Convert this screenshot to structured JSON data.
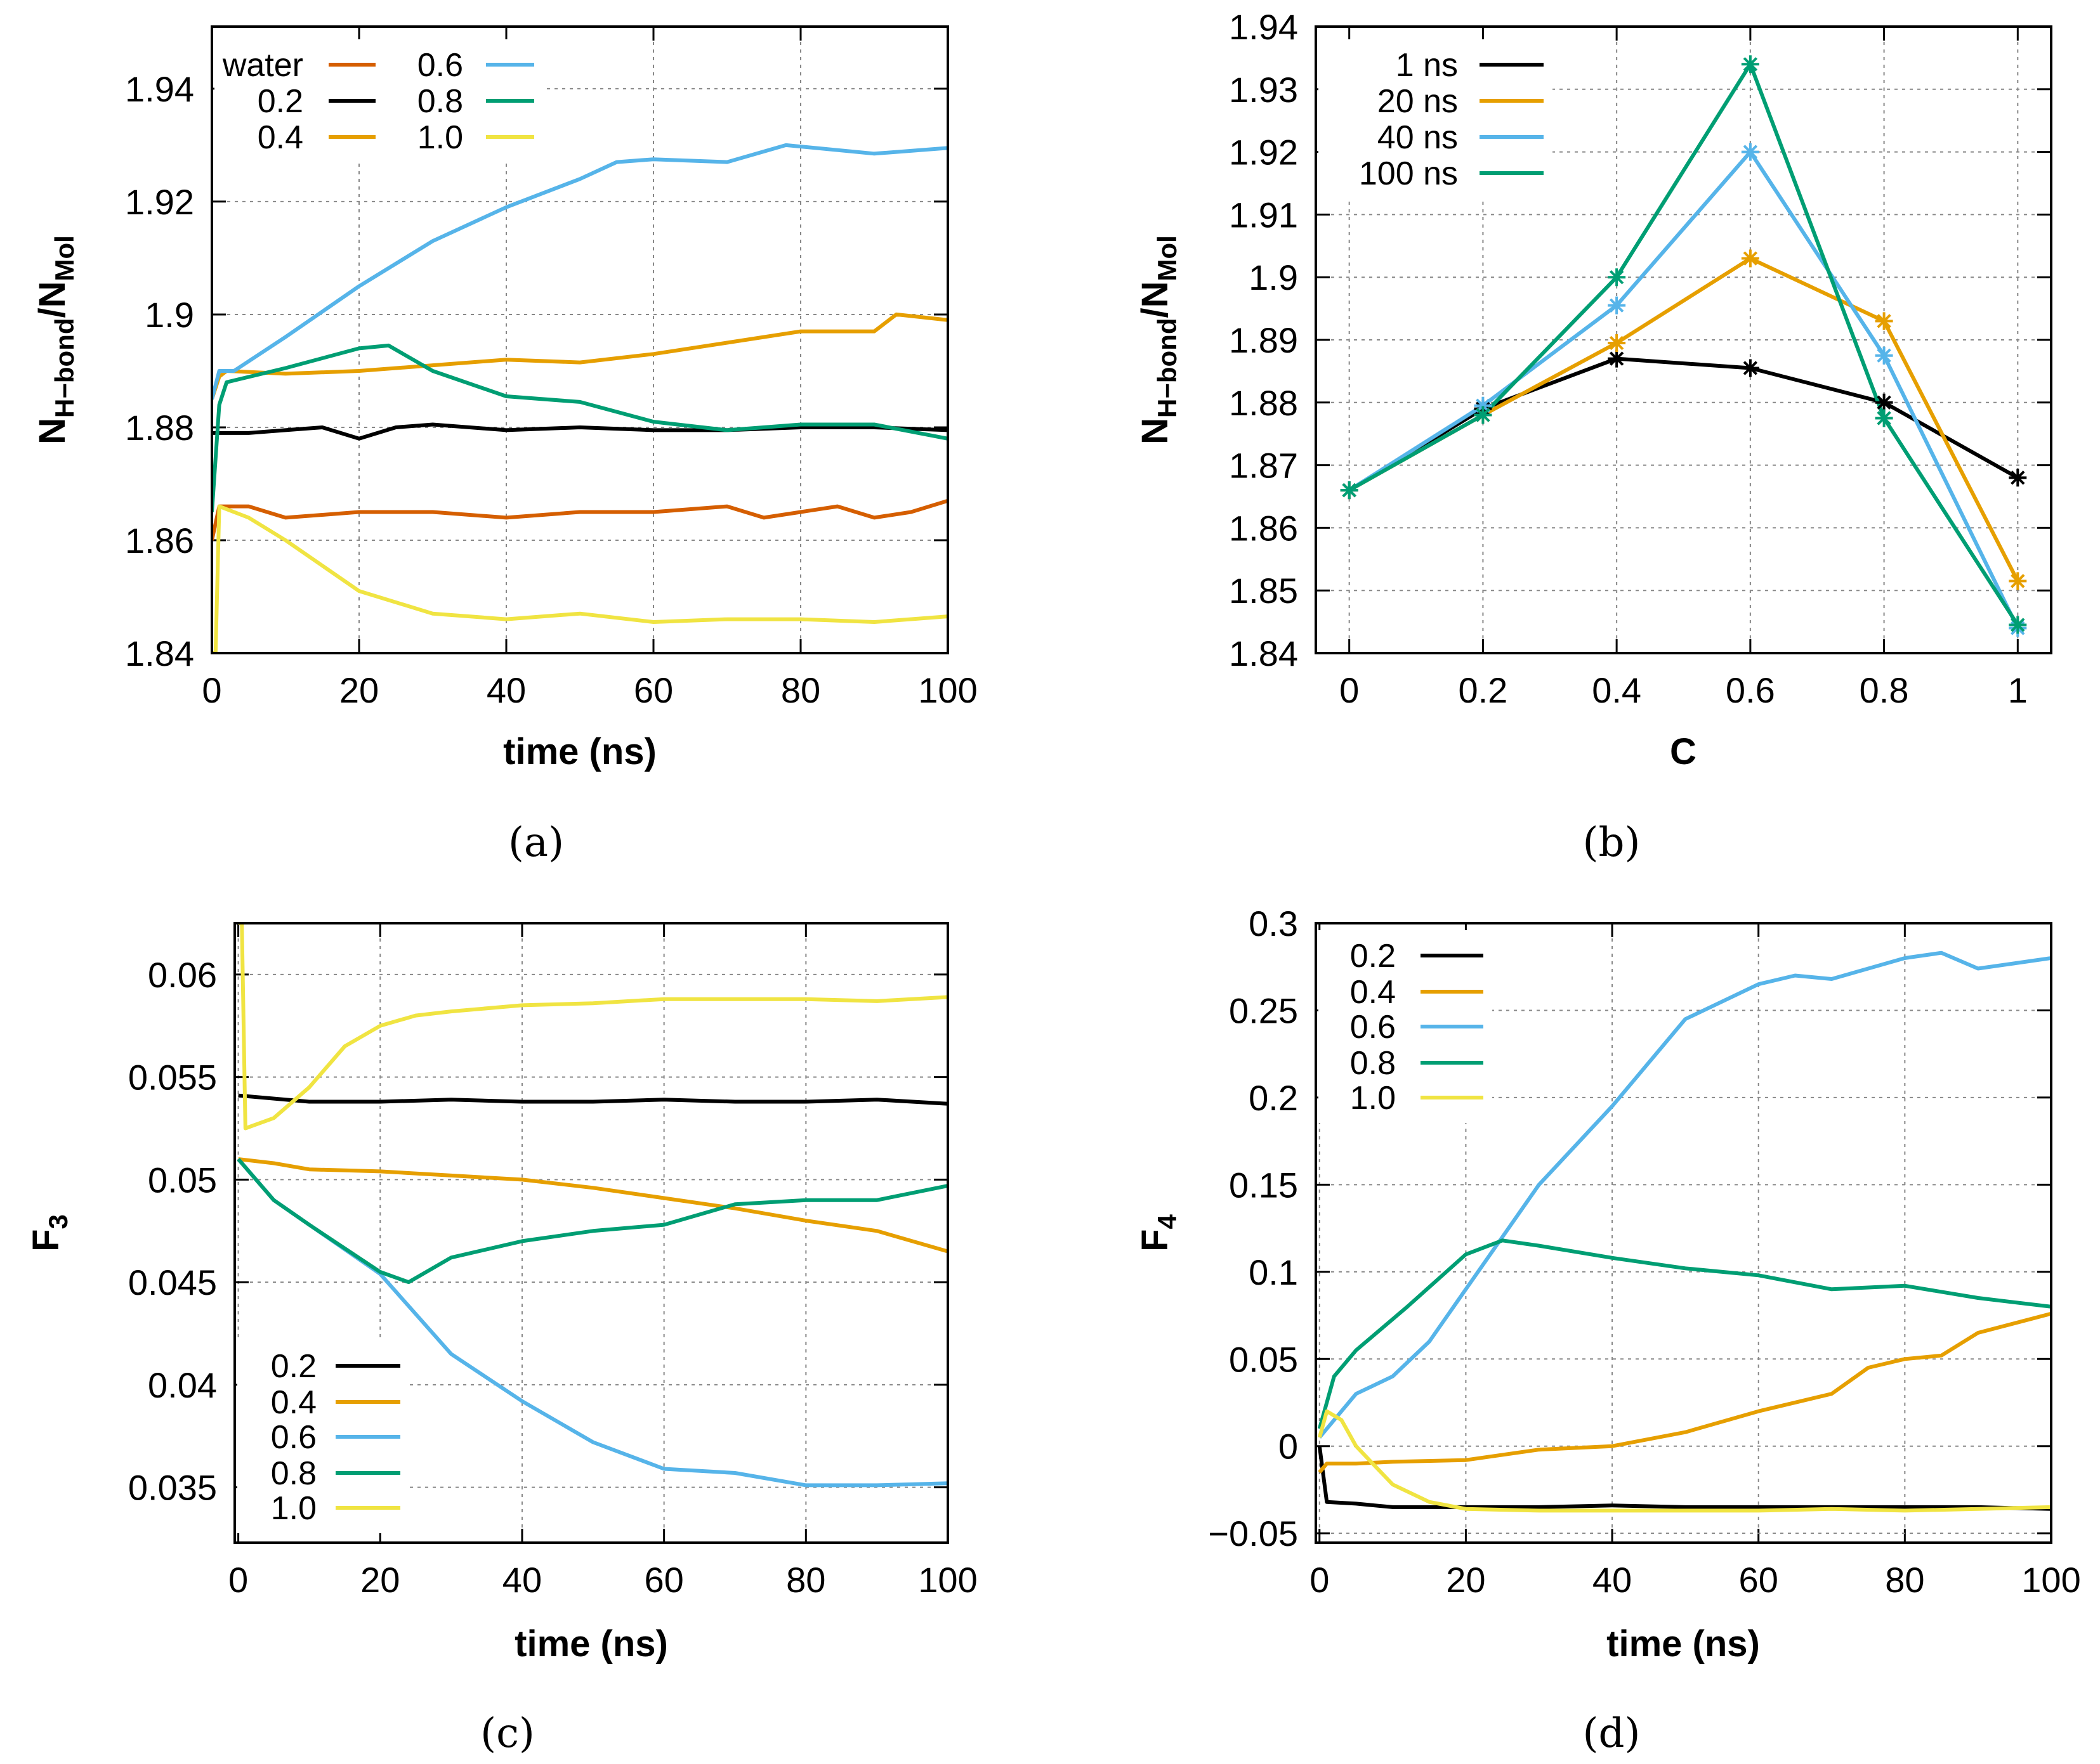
{
  "chart_data": [
    {
      "panel_label": "(a)",
      "type": "line",
      "xlabel": "time (ns)",
      "ylabel": {
        "n1": "N",
        "s1": "H−bond",
        "n2": "/N",
        "s2": "Mol"
      },
      "xlim": [
        0,
        100
      ],
      "ylim": [
        1.84,
        1.951
      ],
      "xticks": [
        0,
        20,
        40,
        60,
        80,
        100
      ],
      "xtick_labels": [
        "0",
        "20",
        "40",
        "60",
        "80",
        "100"
      ],
      "yticks": [
        1.84,
        1.86,
        1.88,
        1.9,
        1.92,
        1.94
      ],
      "ytick_labels": [
        "1.84",
        "1.86",
        "1.88",
        "1.9",
        "1.92",
        "1.94"
      ],
      "grid": true,
      "legend": {
        "placement": "top-left",
        "columns": 2
      },
      "series": [
        {
          "name": "water",
          "color": "#d55e00",
          "x": [
            0,
            1,
            5,
            10,
            20,
            30,
            40,
            50,
            60,
            70,
            75,
            80,
            85,
            90,
            95,
            100
          ],
          "y": [
            1.86,
            1.866,
            1.866,
            1.864,
            1.865,
            1.865,
            1.864,
            1.865,
            1.865,
            1.866,
            1.864,
            1.865,
            1.866,
            1.864,
            1.865,
            1.867
          ]
        },
        {
          "name": "0.2",
          "color": "#000000",
          "x": [
            0,
            1,
            5,
            10,
            15,
            20,
            25,
            30,
            40,
            50,
            60,
            70,
            80,
            90,
            100
          ],
          "y": [
            1.879,
            1.879,
            1.879,
            1.8795,
            1.88,
            1.878,
            1.88,
            1.8805,
            1.8795,
            1.88,
            1.8795,
            1.8795,
            1.88,
            1.88,
            1.8795
          ]
        },
        {
          "name": "0.4",
          "color": "#e69f00",
          "x": [
            0,
            1,
            2,
            10,
            20,
            30,
            40,
            50,
            60,
            70,
            80,
            85,
            90,
            93,
            100
          ],
          "y": [
            1.885,
            1.889,
            1.89,
            1.8895,
            1.89,
            1.891,
            1.892,
            1.8915,
            1.893,
            1.895,
            1.897,
            1.897,
            1.897,
            1.9,
            1.899
          ]
        },
        {
          "name": "0.6",
          "color": "#56b4e9",
          "x": [
            0,
            1,
            3,
            10,
            20,
            30,
            40,
            50,
            55,
            60,
            70,
            78,
            90,
            100
          ],
          "y": [
            1.885,
            1.89,
            1.89,
            1.896,
            1.905,
            1.913,
            1.919,
            1.924,
            1.927,
            1.9275,
            1.927,
            1.93,
            1.9285,
            1.9295
          ]
        },
        {
          "name": "0.8",
          "color": "#009e73",
          "x": [
            0,
            1,
            2,
            10,
            20,
            24,
            30,
            40,
            50,
            60,
            70,
            80,
            90,
            100
          ],
          "y": [
            1.865,
            1.884,
            1.888,
            1.8905,
            1.894,
            1.8945,
            1.89,
            1.8855,
            1.8845,
            1.881,
            1.8795,
            1.8805,
            1.8805,
            1.878
          ]
        },
        {
          "name": "1.0",
          "color": "#f0e442",
          "x": [
            0,
            0.5,
            1,
            5,
            10,
            20,
            30,
            40,
            50,
            60,
            70,
            80,
            90,
            100
          ],
          "y": [
            1.84,
            1.84,
            1.866,
            1.864,
            1.86,
            1.851,
            1.847,
            1.846,
            1.847,
            1.8455,
            1.846,
            1.846,
            1.8455,
            1.8465
          ]
        }
      ]
    },
    {
      "panel_label": "(b)",
      "type": "line",
      "xlabel": "C",
      "ylabel": {
        "n1": "N",
        "s1": "H−bond",
        "n2": "/N",
        "s2": "Mol"
      },
      "xlim": [
        -0.05,
        1.05
      ],
      "ylim": [
        1.84,
        1.94
      ],
      "xticks": [
        0,
        0.2,
        0.4,
        0.6,
        0.8,
        1
      ],
      "xtick_labels": [
        "0",
        "0.2",
        "0.4",
        "0.6",
        "0.8",
        "1"
      ],
      "yticks": [
        1.84,
        1.85,
        1.86,
        1.87,
        1.88,
        1.89,
        1.9,
        1.91,
        1.92,
        1.93,
        1.94
      ],
      "ytick_labels": [
        "1.84",
        "1.85",
        "1.86",
        "1.87",
        "1.88",
        "1.89",
        "1.9",
        "1.91",
        "1.92",
        "1.93",
        "1.94"
      ],
      "grid": true,
      "markers": "asterisk",
      "legend": {
        "placement": "top-left",
        "columns": 1
      },
      "series": [
        {
          "name": "1 ns",
          "color": "#000000",
          "x": [
            0,
            0.2,
            0.4,
            0.6,
            0.8,
            1
          ],
          "y": [
            1.866,
            1.879,
            1.887,
            1.8855,
            1.88,
            1.868
          ]
        },
        {
          "name": "20 ns",
          "color": "#e69f00",
          "x": [
            0,
            0.2,
            0.4,
            0.6,
            0.8,
            1
          ],
          "y": [
            1.866,
            1.878,
            1.8895,
            1.903,
            1.893,
            1.8515
          ]
        },
        {
          "name": "40 ns",
          "color": "#56b4e9",
          "x": [
            0,
            0.2,
            0.4,
            0.6,
            0.8,
            1
          ],
          "y": [
            1.866,
            1.8795,
            1.8955,
            1.92,
            1.8875,
            1.844
          ]
        },
        {
          "name": "100 ns",
          "color": "#009e73",
          "x": [
            0,
            0.2,
            0.4,
            0.6,
            0.8,
            1
          ],
          "y": [
            1.866,
            1.878,
            1.9,
            1.934,
            1.8775,
            1.8445
          ]
        }
      ]
    },
    {
      "panel_label": "(c)",
      "type": "line",
      "xlabel": "time (ns)",
      "ylabel": {
        "n1": "F",
        "s1": "3",
        "n2": "",
        "s2": ""
      },
      "xlim": [
        -0.5,
        100
      ],
      "ylim": [
        0.0323,
        0.0625
      ],
      "xticks": [
        0,
        20,
        40,
        60,
        80,
        100
      ],
      "xtick_labels": [
        "0",
        "20",
        "40",
        "60",
        "80",
        "100"
      ],
      "yticks": [
        0.035,
        0.04,
        0.045,
        0.05,
        0.055,
        0.06
      ],
      "ytick_labels": [
        "0.035",
        "0.04",
        "0.045",
        "0.05",
        "0.055",
        "0.06"
      ],
      "grid": true,
      "legend": {
        "placement": "bottom-left",
        "columns": 1
      },
      "series": [
        {
          "name": "0.2",
          "color": "#000000",
          "x": [
            0,
            10,
            20,
            30,
            40,
            50,
            60,
            70,
            80,
            90,
            100
          ],
          "y": [
            0.0541,
            0.0538,
            0.0538,
            0.0539,
            0.0538,
            0.0538,
            0.0539,
            0.0538,
            0.0538,
            0.0539,
            0.0537
          ]
        },
        {
          "name": "0.4",
          "color": "#e69f00",
          "x": [
            0,
            5,
            10,
            20,
            30,
            40,
            50,
            60,
            70,
            80,
            90,
            100
          ],
          "y": [
            0.051,
            0.0508,
            0.0505,
            0.0504,
            0.0502,
            0.05,
            0.0496,
            0.0491,
            0.0486,
            0.048,
            0.0475,
            0.0465
          ]
        },
        {
          "name": "0.6",
          "color": "#56b4e9",
          "x": [
            0,
            5,
            10,
            20,
            30,
            40,
            50,
            60,
            70,
            80,
            90,
            100
          ],
          "y": [
            0.051,
            0.049,
            0.0478,
            0.0454,
            0.0415,
            0.0392,
            0.0372,
            0.0359,
            0.0357,
            0.0351,
            0.0351,
            0.0352
          ]
        },
        {
          "name": "0.8",
          "color": "#009e73",
          "x": [
            0,
            5,
            10,
            20,
            24,
            30,
            40,
            50,
            60,
            70,
            80,
            90,
            100
          ],
          "y": [
            0.051,
            0.049,
            0.0478,
            0.0455,
            0.045,
            0.0462,
            0.047,
            0.0475,
            0.0478,
            0.0488,
            0.049,
            0.049,
            0.0497
          ]
        },
        {
          "name": "1.0",
          "color": "#f0e442",
          "x": [
            0,
            0.5,
            1,
            5,
            10,
            15,
            20,
            25,
            30,
            40,
            50,
            60,
            70,
            80,
            90,
            100
          ],
          "y": [
            0.0625,
            0.0625,
            0.0525,
            0.053,
            0.0545,
            0.0565,
            0.0575,
            0.058,
            0.0582,
            0.0585,
            0.0586,
            0.0588,
            0.0588,
            0.0588,
            0.0587,
            0.0589
          ]
        }
      ]
    },
    {
      "panel_label": "(d)",
      "type": "line",
      "xlabel": "time (ns)",
      "ylabel": {
        "n1": "F",
        "s1": "4",
        "n2": "",
        "s2": ""
      },
      "xlim": [
        -0.5,
        100
      ],
      "ylim": [
        -0.0554,
        0.3
      ],
      "xticks": [
        0,
        20,
        40,
        60,
        80,
        100
      ],
      "xtick_labels": [
        "0",
        "20",
        "40",
        "60",
        "80",
        "100"
      ],
      "yticks": [
        -0.05,
        0,
        0.05,
        0.1,
        0.15,
        0.2,
        0.25,
        0.3
      ],
      "ytick_labels": [
        "−0.05",
        "0",
        "0.05",
        "0.1",
        "0.15",
        "0.2",
        "0.25",
        "0.3"
      ],
      "grid": true,
      "legend": {
        "placement": "top-left",
        "columns": 1
      },
      "series": [
        {
          "name": "0.2",
          "color": "#000000",
          "x": [
            0,
            1,
            5,
            10,
            20,
            30,
            40,
            50,
            60,
            70,
            80,
            90,
            100
          ],
          "y": [
            0,
            -0.032,
            -0.033,
            -0.035,
            -0.035,
            -0.035,
            -0.034,
            -0.035,
            -0.035,
            -0.035,
            -0.035,
            -0.035,
            -0.036
          ]
        },
        {
          "name": "0.4",
          "color": "#e69f00",
          "x": [
            0,
            1,
            5,
            10,
            20,
            30,
            40,
            50,
            60,
            70,
            75,
            80,
            85,
            90,
            100
          ],
          "y": [
            -0.015,
            -0.01,
            -0.01,
            -0.009,
            -0.008,
            -0.002,
            0,
            0.008,
            0.02,
            0.03,
            0.045,
            0.05,
            0.052,
            0.065,
            0.076
          ]
        },
        {
          "name": "0.6",
          "color": "#56b4e9",
          "x": [
            0,
            5,
            10,
            15,
            20,
            25,
            30,
            40,
            50,
            60,
            65,
            70,
            80,
            85,
            90,
            100
          ],
          "y": [
            0.005,
            0.03,
            0.04,
            0.06,
            0.09,
            0.12,
            0.15,
            0.195,
            0.245,
            0.265,
            0.27,
            0.268,
            0.28,
            0.283,
            0.274,
            0.28
          ]
        },
        {
          "name": "0.8",
          "color": "#009e73",
          "x": [
            0,
            2,
            5,
            12,
            20,
            25,
            30,
            40,
            50,
            60,
            70,
            80,
            90,
            100
          ],
          "y": [
            0.01,
            0.04,
            0.055,
            0.08,
            0.11,
            0.118,
            0.115,
            0.108,
            0.102,
            0.098,
            0.09,
            0.092,
            0.085,
            0.08
          ]
        },
        {
          "name": "1.0",
          "color": "#f0e442",
          "x": [
            0,
            1,
            3,
            5,
            10,
            15,
            20,
            30,
            40,
            50,
            60,
            70,
            80,
            90,
            100
          ],
          "y": [
            0.005,
            0.02,
            0.015,
            0,
            -0.022,
            -0.032,
            -0.036,
            -0.037,
            -0.037,
            -0.037,
            -0.037,
            -0.036,
            -0.037,
            -0.036,
            -0.035
          ]
        }
      ]
    }
  ]
}
